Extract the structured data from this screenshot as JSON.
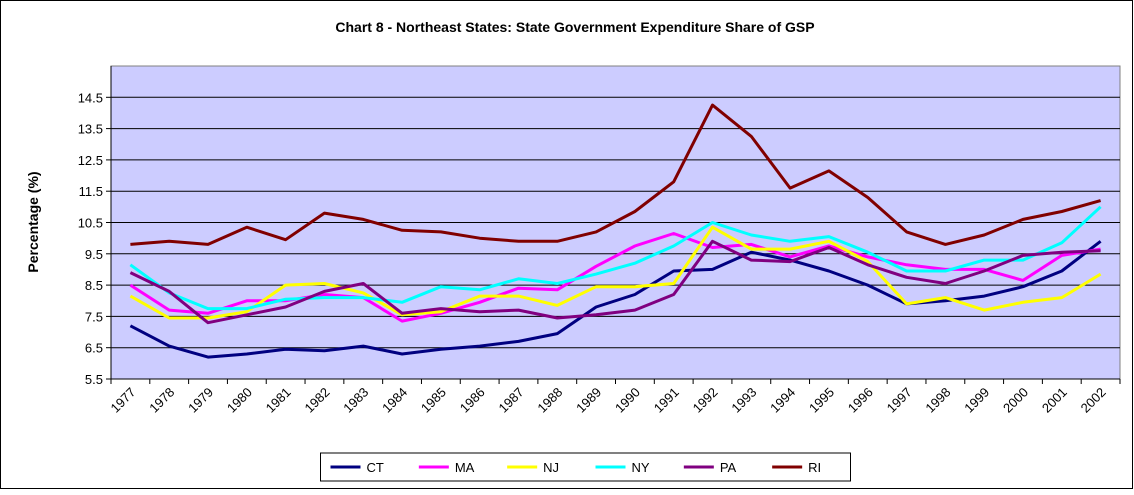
{
  "chart_data": {
    "type": "line",
    "title": "Chart 8 - Northeast States: State Government Expenditure Share of GSP",
    "y_label": "Percentage (%)",
    "categories": [
      "1977",
      "1978",
      "1979",
      "1980",
      "1981",
      "1982",
      "1983",
      "1984",
      "1985",
      "1986",
      "1987",
      "1988",
      "1989",
      "1990",
      "1991",
      "1992",
      "1993",
      "1994",
      "1995",
      "1996",
      "1997",
      "1998",
      "1999",
      "2000",
      "2001",
      "2002"
    ],
    "series": [
      {
        "name": "CT",
        "color": "#000080",
        "values": [
          7.2,
          6.55,
          6.2,
          6.3,
          6.45,
          6.4,
          6.55,
          6.3,
          6.45,
          6.55,
          6.7,
          6.95,
          7.8,
          8.2,
          8.95,
          9.0,
          9.55,
          9.3,
          8.95,
          8.5,
          7.9,
          8.0,
          8.15,
          8.45,
          8.95,
          9.9
        ]
      },
      {
        "name": "MA",
        "color": "#FF00FF",
        "values": [
          8.5,
          7.7,
          7.6,
          8.0,
          8.0,
          8.2,
          8.1,
          7.35,
          7.6,
          7.95,
          8.4,
          8.35,
          9.1,
          9.75,
          10.15,
          9.7,
          9.8,
          9.4,
          9.75,
          9.4,
          9.15,
          9.0,
          9.0,
          8.65,
          9.45,
          9.65
        ]
      },
      {
        "name": "NJ",
        "color": "#FFFF00",
        "values": [
          8.15,
          7.45,
          7.45,
          7.65,
          8.5,
          8.55,
          8.25,
          7.55,
          7.65,
          8.15,
          8.15,
          7.85,
          8.45,
          8.45,
          8.55,
          10.35,
          9.65,
          9.65,
          9.9,
          9.25,
          7.9,
          8.1,
          7.7,
          7.95,
          8.1,
          8.85
        ]
      },
      {
        "name": "NY",
        "color": "#00FFFF",
        "values": [
          9.15,
          8.25,
          7.75,
          7.75,
          8.05,
          8.1,
          8.1,
          7.95,
          8.45,
          8.35,
          8.7,
          8.55,
          8.85,
          9.2,
          9.75,
          10.5,
          10.1,
          9.9,
          10.05,
          9.55,
          8.95,
          8.95,
          9.3,
          9.3,
          9.85,
          11.0
        ]
      },
      {
        "name": "PA",
        "color": "#800080",
        "values": [
          8.9,
          8.3,
          7.3,
          7.55,
          7.8,
          8.3,
          8.55,
          7.6,
          7.75,
          7.65,
          7.7,
          7.45,
          7.55,
          7.7,
          8.2,
          9.9,
          9.3,
          9.25,
          9.7,
          9.15,
          8.75,
          8.55,
          8.95,
          9.45,
          9.55,
          9.6
        ]
      },
      {
        "name": "RI",
        "color": "#800000",
        "values": [
          9.8,
          9.9,
          9.8,
          10.35,
          9.95,
          10.8,
          10.6,
          10.25,
          10.2,
          10.0,
          9.9,
          9.9,
          10.2,
          10.85,
          11.8,
          14.25,
          13.25,
          11.6,
          12.15,
          11.3,
          10.2,
          9.8,
          10.1,
          10.6,
          10.85,
          11.2
        ]
      }
    ],
    "ylim": [
      5.5,
      15.5
    ],
    "yticks": [
      5.5,
      6.5,
      7.5,
      8.5,
      9.5,
      10.5,
      11.5,
      12.5,
      13.5,
      14.5
    ],
    "grid": true,
    "plot_background": "#CCCCFF",
    "legend": "bottom"
  }
}
